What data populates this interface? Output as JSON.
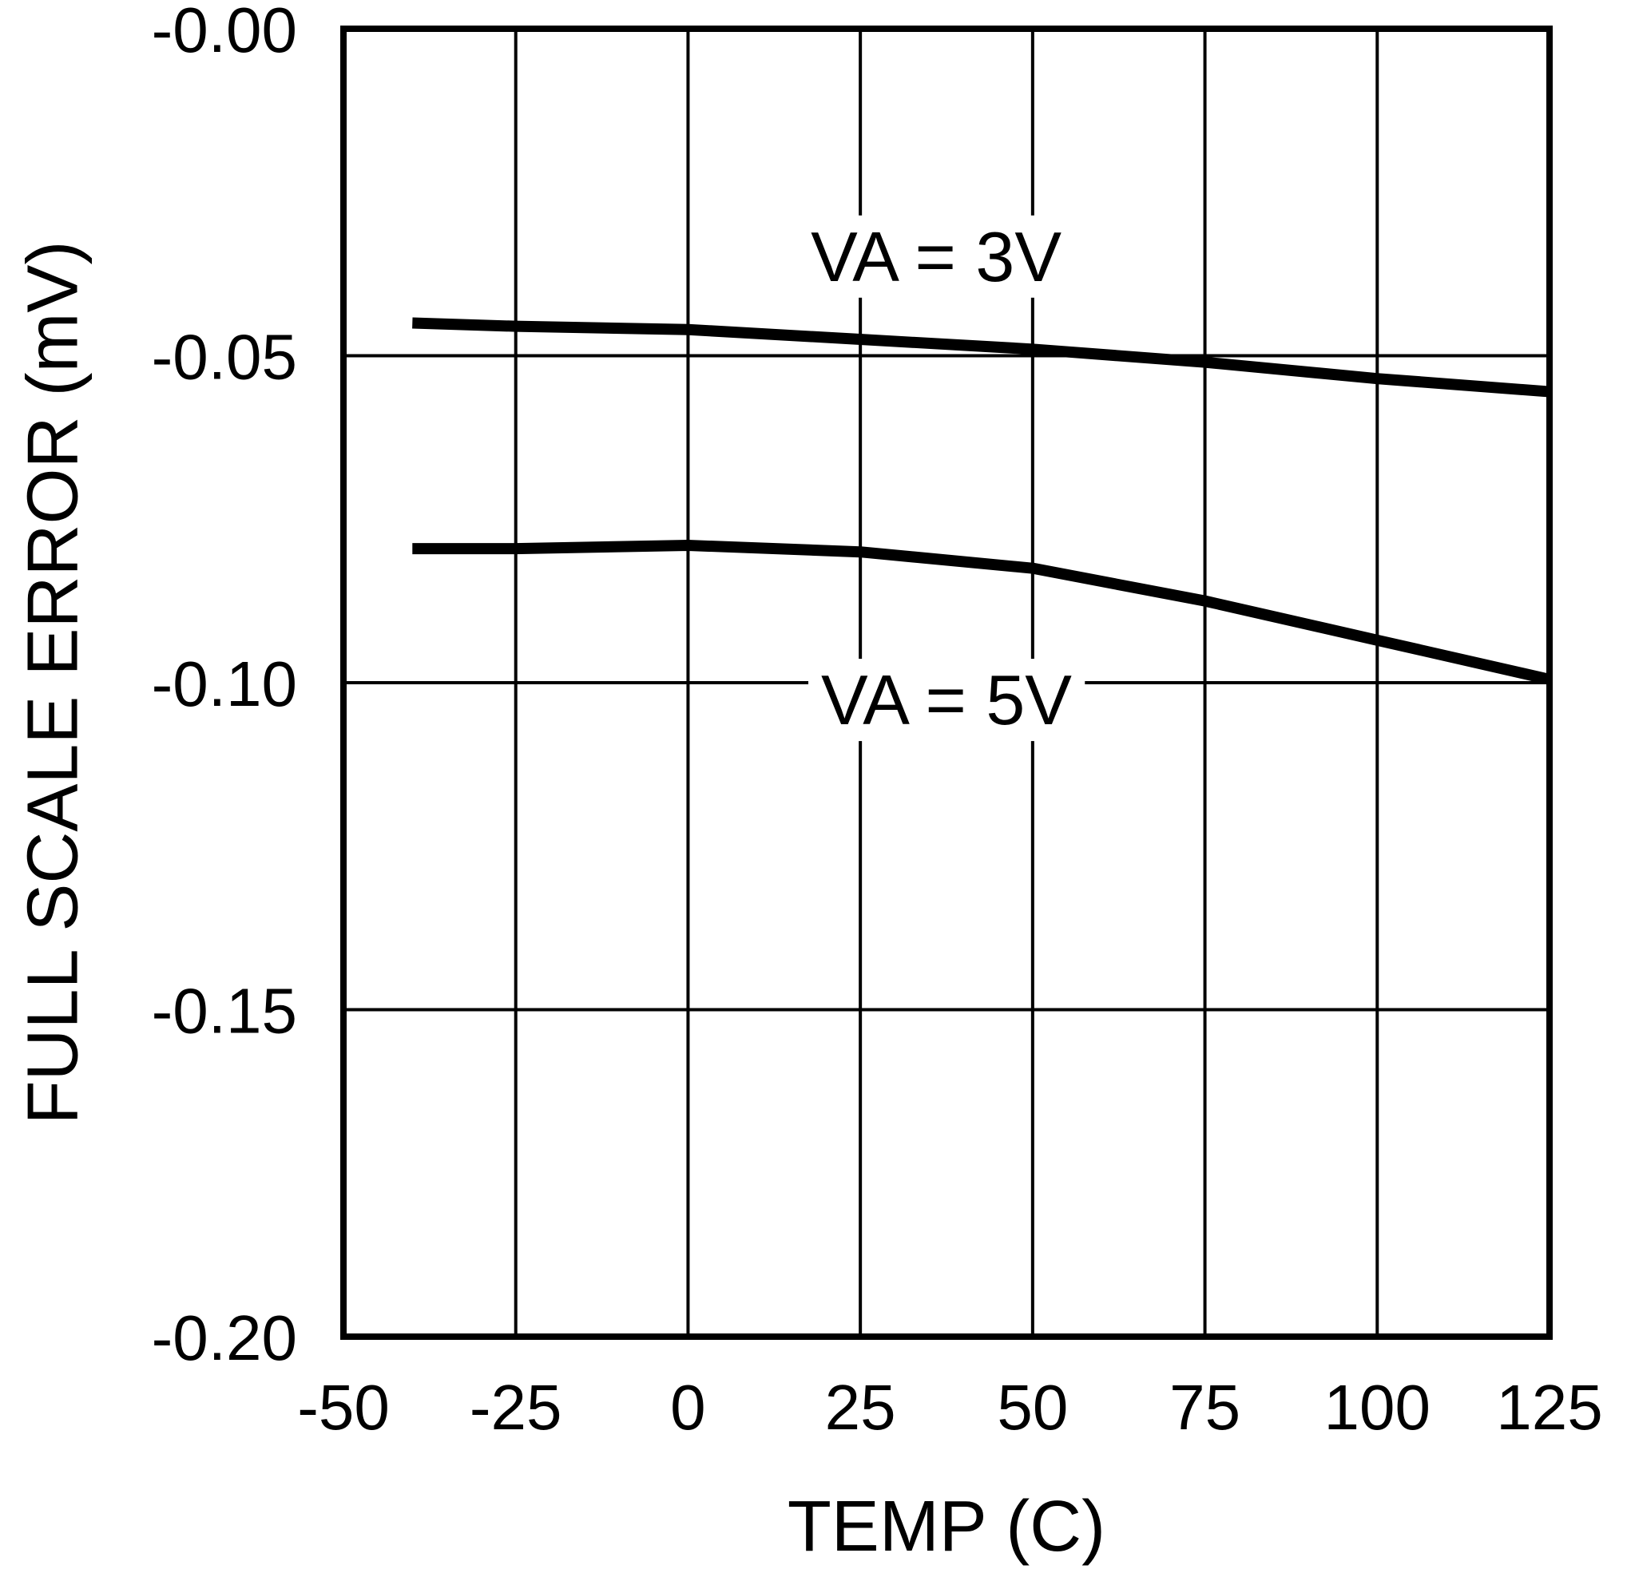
{
  "figure": {
    "background_color": "#ffffff",
    "line_color": "#000000",
    "grid_color": "#000000"
  },
  "chart_data": {
    "type": "line",
    "title": "",
    "xlabel": "TEMP (C)",
    "ylabel": "FULL SCALE ERROR (mV)",
    "xlim": [
      -50,
      125
    ],
    "ylim": [
      -0.2,
      0.0
    ],
    "grid": true,
    "legend_position": "inline-labels",
    "x_ticks": [
      -50,
      -25,
      0,
      25,
      50,
      75,
      100,
      125
    ],
    "x_tick_labels": [
      "-50",
      "-25",
      "0",
      "25",
      "50",
      "75",
      "100",
      "125"
    ],
    "y_ticks": [
      0.0,
      -0.05,
      -0.1,
      -0.15,
      -0.2
    ],
    "y_tick_labels": [
      "-0.00",
      "-0.05",
      "-0.10",
      "-0.15",
      "-0.20"
    ],
    "x": [
      -40,
      -25,
      0,
      25,
      50,
      75,
      100,
      125
    ],
    "series": [
      {
        "name": "VA = 3V",
        "values": [
          -0.045,
          -0.0455,
          -0.046,
          -0.0475,
          -0.049,
          -0.051,
          -0.0535,
          -0.0555
        ],
        "label_anchor": {
          "x": 36.0,
          "y": -0.0348
        }
      },
      {
        "name": "VA = 5V",
        "values": [
          -0.0795,
          -0.0795,
          -0.079,
          -0.08,
          -0.0825,
          -0.0875,
          -0.0935,
          -0.0995
        ],
        "label_anchor": {
          "x": 37.5,
          "y": -0.1026
        }
      }
    ]
  },
  "style": {
    "frame_stroke_width": 8,
    "grid_stroke_width": 4,
    "curve_stroke_width": 14,
    "tick_font_size": 80,
    "axis_label_font_size": 90,
    "series_label_font_size": 88
  }
}
